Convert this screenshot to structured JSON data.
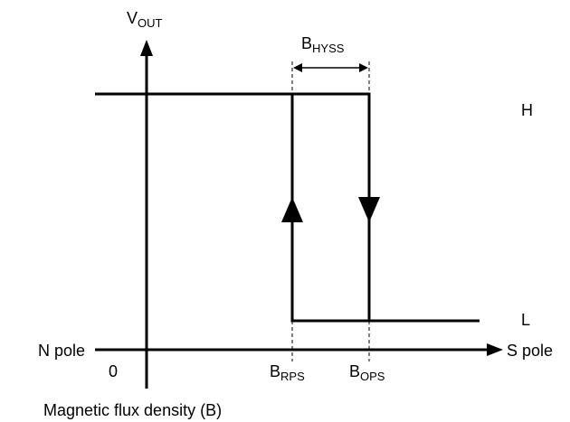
{
  "axes": {
    "y_label": {
      "main": "V",
      "sub": "OUT"
    },
    "x_left": "N pole",
    "x_right": "S pole",
    "origin": "0",
    "x_caption": "Magnetic flux density (B)"
  },
  "levels": {
    "high": "H",
    "low": "L"
  },
  "thresholds": {
    "hysteresis": {
      "main": "B",
      "sub": "HYSS"
    },
    "release": {
      "main": "B",
      "sub": "RPS"
    },
    "operate": {
      "main": "B",
      "sub": "OPS"
    }
  }
}
